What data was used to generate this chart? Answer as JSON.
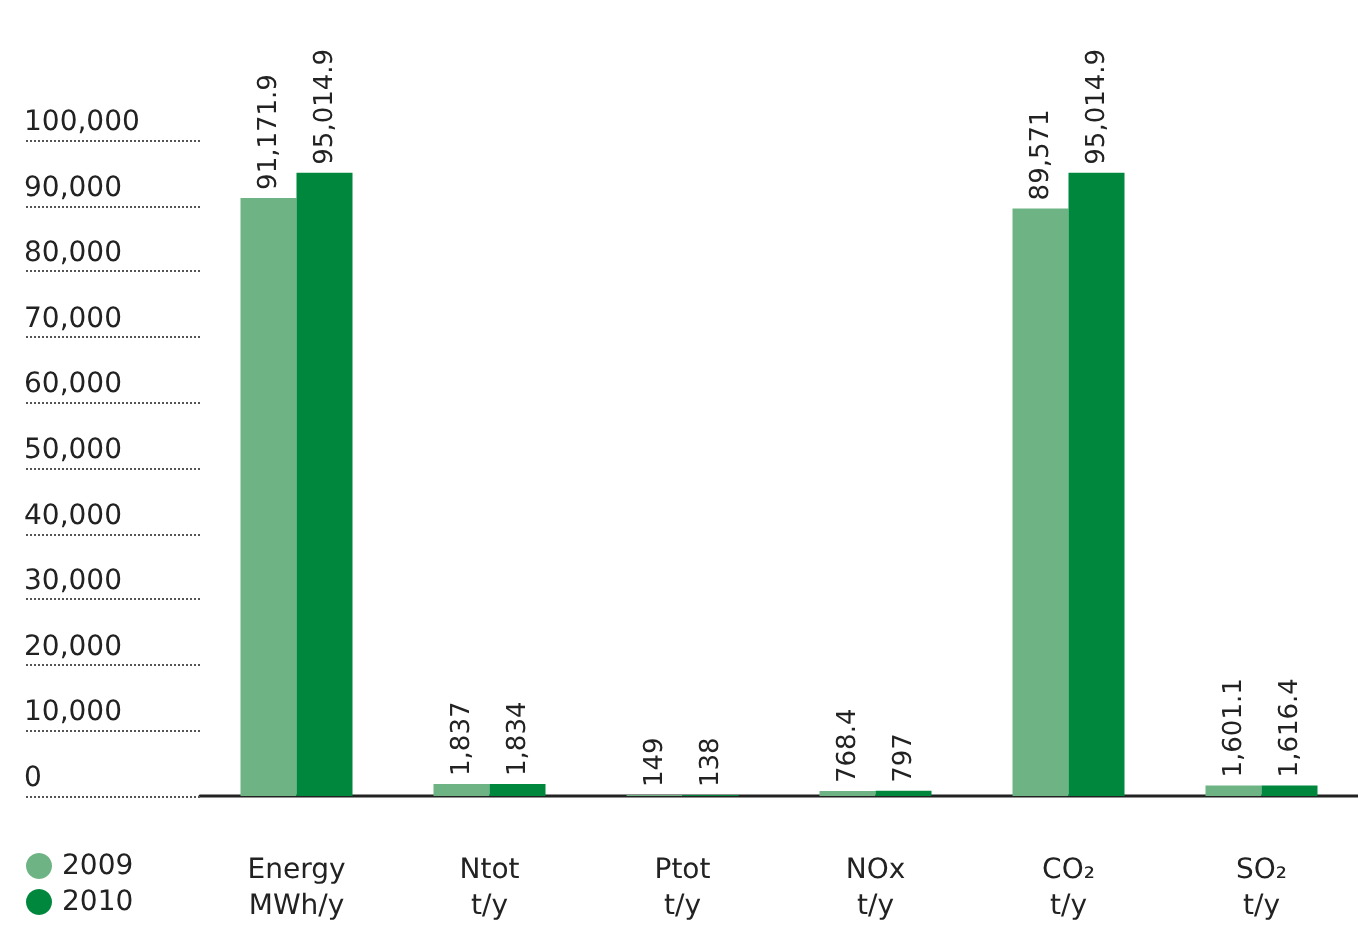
{
  "chart_data": {
    "type": "bar",
    "categories": [
      "Energy\nMWh/y",
      "Ntot\nt/y",
      "Ptot\nt/y",
      "NOx\nt/y",
      "CO₂\nt/y",
      "SO₂\nt/y"
    ],
    "series": [
      {
        "name": "2009",
        "color": "#6db383",
        "values": [
          91171.9,
          1837,
          149,
          768.4,
          89571,
          1601.1
        ],
        "value_labels": [
          "91,171.9",
          "1,837",
          "149",
          "768.4",
          "89,571",
          "1,601.1"
        ]
      },
      {
        "name": "2010",
        "color": "#00873e",
        "values": [
          95014.9,
          1834,
          138,
          797,
          95014.9,
          1616.4
        ],
        "value_labels": [
          "95,014.9",
          "1,834",
          "138",
          "797",
          "95,014.9",
          "1,616.4"
        ]
      }
    ],
    "ylim": [
      0,
      100000
    ],
    "yticks": [
      0,
      {
        "value": 10000,
        "label": "10,000"
      },
      {
        "value": 20000,
        "label": "20,000"
      },
      {
        "value": 30000,
        "label": "30,000"
      },
      {
        "value": 40000,
        "label": "40,000"
      },
      {
        "value": 50000,
        "label": "50,000"
      },
      {
        "value": 60000,
        "label": "60,000"
      },
      {
        "value": 70000,
        "label": "70,000"
      },
      {
        "value": 80000,
        "label": "80,000"
      },
      {
        "value": 90000,
        "label": "90,000"
      },
      {
        "value": 100000,
        "label": "100,000"
      }
    ],
    "grid": false,
    "legend": "bottom left"
  }
}
